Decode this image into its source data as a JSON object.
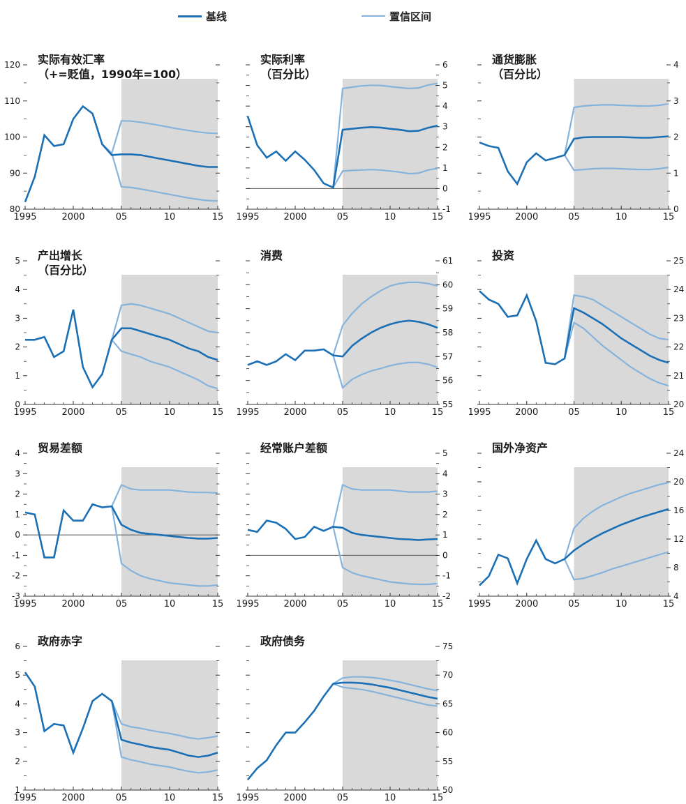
{
  "legend": {
    "baseline": "基线",
    "confidence": "置信区间",
    "baseline_color": "#1a6fb5",
    "confidence_color": "#85b3dc"
  },
  "colors": {
    "shade": "#d9d9d9",
    "axis": "#333333",
    "text": "#1a1a1a"
  },
  "chart_data": [
    {
      "type": "line",
      "title_lines": [
        "实际有效汇率",
        "（+=贬值，1990年=100）"
      ],
      "axis_side": "left",
      "ylim": [
        80,
        120
      ],
      "yticks": [
        80,
        90,
        100,
        110,
        120
      ],
      "zero_line": false,
      "x_ticks": [
        1995,
        2000,
        2005,
        2010,
        2015
      ],
      "x_tick_labels": [
        "1995",
        "2000",
        "05",
        "10",
        "15"
      ],
      "shade_from": 2005,
      "x": [
        1995,
        1996,
        1997,
        1998,
        1999,
        2000,
        2001,
        2002,
        2003,
        2004,
        2005,
        2006,
        2007,
        2008,
        2009,
        2010,
        2011,
        2012,
        2013,
        2014,
        2015
      ],
      "baseline": [
        82,
        89,
        100.5,
        97.5,
        98,
        105,
        108.5,
        106.5,
        98,
        95,
        95.2,
        95.2,
        95,
        94.5,
        94,
        93.5,
        93,
        92.5,
        92,
        91.7,
        91.7
      ],
      "upper": [
        null,
        null,
        null,
        null,
        null,
        null,
        null,
        null,
        98,
        95.5,
        104.5,
        104.4,
        104.1,
        103.7,
        103.2,
        102.7,
        102.2,
        101.8,
        101.4,
        101.1,
        101
      ],
      "lower": [
        null,
        null,
        null,
        null,
        null,
        null,
        null,
        null,
        98,
        95.5,
        86.2,
        86,
        85.6,
        85.1,
        84.6,
        84.1,
        83.6,
        83.1,
        82.7,
        82.4,
        82.3
      ]
    },
    {
      "type": "line",
      "title_lines": [
        "实际利率",
        "（百分比）"
      ],
      "axis_side": "right",
      "ylim": [
        -1,
        6
      ],
      "yticks": [
        -1,
        0,
        1,
        2,
        3,
        4,
        5,
        6
      ],
      "zero_line": true,
      "x_ticks": [
        1995,
        2000,
        2005,
        2010,
        2015
      ],
      "x_tick_labels": [
        "1995",
        "2000",
        "05",
        "10",
        "15"
      ],
      "shade_from": 2005,
      "x": [
        1995,
        1996,
        1997,
        1998,
        1999,
        2000,
        2001,
        2002,
        2003,
        2004,
        2005,
        2006,
        2007,
        2008,
        2009,
        2010,
        2011,
        2012,
        2013,
        2014,
        2015
      ],
      "baseline": [
        3.5,
        2.1,
        1.5,
        1.8,
        1.35,
        1.8,
        1.4,
        0.9,
        0.25,
        0.05,
        2.85,
        2.9,
        2.95,
        2.98,
        2.96,
        2.9,
        2.85,
        2.78,
        2.8,
        2.95,
        3.05
      ],
      "upper": [
        null,
        null,
        null,
        null,
        null,
        null,
        null,
        null,
        null,
        0.05,
        4.85,
        4.92,
        4.98,
        5.01,
        5,
        4.95,
        4.9,
        4.85,
        4.88,
        5.02,
        5.1
      ],
      "lower": [
        null,
        null,
        null,
        null,
        null,
        null,
        null,
        null,
        null,
        0.05,
        0.85,
        0.88,
        0.9,
        0.92,
        0.9,
        0.85,
        0.8,
        0.72,
        0.75,
        0.9,
        0.98
      ]
    },
    {
      "type": "line",
      "title_lines": [
        "通货膨胀",
        "（百分比）"
      ],
      "axis_side": "right",
      "ylim": [
        0,
        4
      ],
      "yticks": [
        0,
        1,
        2,
        3,
        4
      ],
      "zero_line": false,
      "x_ticks": [
        1995,
        2000,
        2005,
        2010,
        2015
      ],
      "x_tick_labels": [
        "1995",
        "2000",
        "05",
        "10",
        "15"
      ],
      "shade_from": 2005,
      "x": [
        1995,
        1996,
        1997,
        1998,
        1999,
        2000,
        2001,
        2002,
        2003,
        2004,
        2005,
        2006,
        2007,
        2008,
        2009,
        2010,
        2011,
        2012,
        2013,
        2014,
        2015
      ],
      "baseline": [
        1.85,
        1.75,
        1.7,
        1.05,
        0.7,
        1.3,
        1.55,
        1.35,
        1.42,
        1.5,
        1.95,
        1.99,
        2,
        2,
        2,
        2,
        1.99,
        1.98,
        1.98,
        2,
        2.02
      ],
      "upper": [
        null,
        null,
        null,
        null,
        null,
        null,
        null,
        null,
        null,
        1.5,
        2.82,
        2.86,
        2.88,
        2.89,
        2.89,
        2.88,
        2.87,
        2.86,
        2.86,
        2.88,
        2.92
      ],
      "lower": [
        null,
        null,
        null,
        null,
        null,
        null,
        null,
        null,
        null,
        1.5,
        1.08,
        1.1,
        1.12,
        1.13,
        1.13,
        1.12,
        1.11,
        1.1,
        1.1,
        1.12,
        1.16
      ]
    },
    {
      "type": "line",
      "title_lines": [
        "产出增长",
        "（百分比）"
      ],
      "axis_side": "left",
      "ylim": [
        0,
        5
      ],
      "yticks": [
        0,
        1,
        2,
        3,
        4,
        5
      ],
      "zero_line": false,
      "x_ticks": [
        1995,
        2000,
        2005,
        2010,
        2015
      ],
      "x_tick_labels": [
        "1995",
        "2000",
        "05",
        "10",
        "15"
      ],
      "shade_from": 2005,
      "x": [
        1995,
        1996,
        1997,
        1998,
        1999,
        2000,
        2001,
        2002,
        2003,
        2004,
        2005,
        2006,
        2007,
        2008,
        2009,
        2010,
        2011,
        2012,
        2013,
        2014,
        2015
      ],
      "baseline": [
        2.25,
        2.25,
        2.35,
        1.65,
        1.85,
        3.3,
        1.3,
        0.6,
        1.05,
        2.25,
        2.65,
        2.65,
        2.55,
        2.45,
        2.35,
        2.25,
        2.1,
        1.95,
        1.85,
        1.65,
        1.55
      ],
      "upper": [
        null,
        null,
        null,
        null,
        null,
        null,
        null,
        null,
        null,
        2.25,
        3.45,
        3.5,
        3.45,
        3.35,
        3.25,
        3.15,
        3,
        2.85,
        2.7,
        2.55,
        2.5
      ],
      "lower": [
        null,
        null,
        null,
        null,
        null,
        null,
        null,
        null,
        null,
        2.25,
        1.85,
        1.75,
        1.65,
        1.5,
        1.4,
        1.3,
        1.15,
        1,
        0.85,
        0.65,
        0.55
      ]
    },
    {
      "type": "line",
      "title_lines": [
        "消费"
      ],
      "axis_side": "right",
      "ylim": [
        55,
        61
      ],
      "yticks": [
        55,
        56,
        57,
        58,
        59,
        60,
        61
      ],
      "zero_line": false,
      "x_ticks": [
        1995,
        2000,
        2005,
        2010,
        2015
      ],
      "x_tick_labels": [
        "1995",
        "2000",
        "05",
        "10",
        "15"
      ],
      "shade_from": 2005,
      "x": [
        1995,
        1996,
        1997,
        1998,
        1999,
        2000,
        2001,
        2002,
        2003,
        2004,
        2005,
        2006,
        2007,
        2008,
        2009,
        2010,
        2011,
        2012,
        2013,
        2014,
        2015
      ],
      "baseline": [
        56.65,
        56.8,
        56.65,
        56.8,
        57.1,
        56.85,
        57.25,
        57.25,
        57.3,
        57.05,
        57,
        57.45,
        57.75,
        58,
        58.2,
        58.35,
        58.45,
        58.5,
        58.45,
        58.35,
        58.2
      ],
      "upper": [
        null,
        null,
        null,
        null,
        null,
        null,
        null,
        null,
        null,
        57.05,
        58.3,
        58.8,
        59.2,
        59.5,
        59.75,
        59.95,
        60.05,
        60.1,
        60.1,
        60.05,
        59.95
      ],
      "lower": [
        null,
        null,
        null,
        null,
        null,
        null,
        null,
        null,
        null,
        57.05,
        55.7,
        56.05,
        56.25,
        56.4,
        56.5,
        56.62,
        56.7,
        56.75,
        56.75,
        56.68,
        56.55
      ]
    },
    {
      "type": "line",
      "title_lines": [
        "投资"
      ],
      "axis_side": "right",
      "ylim": [
        20,
        25
      ],
      "yticks": [
        20,
        21,
        22,
        23,
        24,
        25
      ],
      "zero_line": false,
      "x_ticks": [
        1995,
        2000,
        2005,
        2010,
        2015
      ],
      "x_tick_labels": [
        "1995",
        "2000",
        "05",
        "10",
        "15"
      ],
      "shade_from": 2005,
      "x": [
        1995,
        1996,
        1997,
        1998,
        1999,
        2000,
        2001,
        2002,
        2003,
        2004,
        2005,
        2006,
        2007,
        2008,
        2009,
        2010,
        2011,
        2012,
        2013,
        2014,
        2015
      ],
      "baseline": [
        23.95,
        23.65,
        23.5,
        23.05,
        23.1,
        23.8,
        22.9,
        21.45,
        21.4,
        21.6,
        23.35,
        23.2,
        23,
        22.8,
        22.55,
        22.3,
        22.1,
        21.9,
        21.7,
        21.55,
        21.45
      ],
      "upper": [
        null,
        null,
        null,
        null,
        null,
        null,
        null,
        null,
        null,
        21.6,
        23.8,
        23.75,
        23.65,
        23.45,
        23.25,
        23.05,
        22.85,
        22.65,
        22.45,
        22.3,
        22.25
      ],
      "lower": [
        null,
        null,
        null,
        null,
        null,
        null,
        null,
        null,
        null,
        21.6,
        22.85,
        22.65,
        22.35,
        22.05,
        21.8,
        21.55,
        21.3,
        21.1,
        20.9,
        20.75,
        20.65
      ]
    },
    {
      "type": "line",
      "title_lines": [
        "贸易差额"
      ],
      "axis_side": "left",
      "ylim": [
        -3,
        4
      ],
      "yticks": [
        -3,
        -2,
        -1,
        0,
        1,
        2,
        3,
        4
      ],
      "zero_line": true,
      "x_ticks": [
        1995,
        2000,
        2005,
        2010,
        2015
      ],
      "x_tick_labels": [
        "1995",
        "2000",
        "05",
        "10",
        "15"
      ],
      "shade_from": 2005,
      "x": [
        1995,
        1996,
        1997,
        1998,
        1999,
        2000,
        2001,
        2002,
        2003,
        2004,
        2005,
        2006,
        2007,
        2008,
        2009,
        2010,
        2011,
        2012,
        2013,
        2014,
        2015
      ],
      "baseline": [
        1.1,
        1,
        -1.1,
        -1.1,
        1.2,
        0.7,
        0.7,
        1.5,
        1.35,
        1.4,
        0.5,
        0.25,
        0.1,
        0.05,
        0,
        -0.05,
        -0.1,
        -0.15,
        -0.18,
        -0.18,
        -0.15
      ],
      "upper": [
        null,
        null,
        null,
        null,
        null,
        null,
        null,
        null,
        null,
        1.4,
        2.45,
        2.25,
        2.2,
        2.2,
        2.2,
        2.2,
        2.15,
        2.1,
        2.08,
        2.08,
        2.05
      ],
      "lower": [
        null,
        null,
        null,
        null,
        null,
        null,
        null,
        null,
        null,
        1.4,
        -1.4,
        -1.75,
        -2,
        -2.15,
        -2.25,
        -2.35,
        -2.4,
        -2.45,
        -2.5,
        -2.5,
        -2.45
      ]
    },
    {
      "type": "line",
      "title_lines": [
        "经常账户差额"
      ],
      "axis_side": "right",
      "ylim": [
        -2,
        5
      ],
      "yticks": [
        -2,
        -1,
        0,
        1,
        2,
        3,
        4,
        5
      ],
      "zero_line": true,
      "x_ticks": [
        1995,
        2000,
        2005,
        2010,
        2015
      ],
      "x_tick_labels": [
        "1995",
        "2000",
        "05",
        "10",
        "15"
      ],
      "shade_from": 2005,
      "x": [
        1995,
        1996,
        1997,
        1998,
        1999,
        2000,
        2001,
        2002,
        2003,
        2004,
        2005,
        2006,
        2007,
        2008,
        2009,
        2010,
        2011,
        2012,
        2013,
        2014,
        2015
      ],
      "baseline": [
        1.25,
        1.15,
        1.7,
        1.6,
        1.3,
        0.8,
        0.9,
        1.4,
        1.2,
        1.4,
        1.35,
        1.1,
        1,
        0.95,
        0.9,
        0.85,
        0.8,
        0.78,
        0.75,
        0.78,
        0.8
      ],
      "upper": [
        null,
        null,
        null,
        null,
        null,
        null,
        null,
        null,
        null,
        1.4,
        3.45,
        3.25,
        3.2,
        3.2,
        3.2,
        3.2,
        3.15,
        3.1,
        3.1,
        3.1,
        3.15
      ],
      "lower": [
        null,
        null,
        null,
        null,
        null,
        null,
        null,
        null,
        null,
        1.4,
        -0.6,
        -0.85,
        -1,
        -1.1,
        -1.2,
        -1.3,
        -1.35,
        -1.4,
        -1.42,
        -1.42,
        -1.38
      ]
    },
    {
      "type": "line",
      "title_lines": [
        "国外净资产"
      ],
      "axis_side": "right",
      "ylim": [
        4,
        24
      ],
      "yticks": [
        4,
        8,
        12,
        16,
        20,
        24
      ],
      "zero_line": false,
      "x_ticks": [
        1995,
        2000,
        2005,
        2010,
        2015
      ],
      "x_tick_labels": [
        "1995",
        "2000",
        "05",
        "10",
        "15"
      ],
      "shade_from": 2005,
      "x": [
        1995,
        1996,
        1997,
        1998,
        1999,
        2000,
        2001,
        2002,
        2003,
        2004,
        2005,
        2006,
        2007,
        2008,
        2009,
        2010,
        2011,
        2012,
        2013,
        2014,
        2015
      ],
      "baseline": [
        5.5,
        6.8,
        9.8,
        9.3,
        5.8,
        9.2,
        11.8,
        9.2,
        8.6,
        9.2,
        10.4,
        11.3,
        12.1,
        12.8,
        13.4,
        14,
        14.5,
        15,
        15.4,
        15.8,
        16.2
      ],
      "upper": [
        null,
        null,
        null,
        null,
        null,
        null,
        null,
        null,
        null,
        9.2,
        13.5,
        14.9,
        15.9,
        16.7,
        17.3,
        17.9,
        18.4,
        18.8,
        19.2,
        19.6,
        19.9
      ],
      "lower": [
        null,
        null,
        null,
        null,
        null,
        null,
        null,
        null,
        null,
        9.2,
        6.3,
        6.5,
        6.9,
        7.3,
        7.8,
        8.2,
        8.6,
        9,
        9.4,
        9.8,
        10.2
      ]
    },
    {
      "type": "line",
      "title_lines": [
        "政府赤字"
      ],
      "axis_side": "left",
      "ylim": [
        1,
        6
      ],
      "yticks": [
        1,
        2,
        3,
        4,
        5,
        6
      ],
      "zero_line": false,
      "x_ticks": [
        1995,
        2000,
        2005,
        2010,
        2015
      ],
      "x_tick_labels": [
        "1995",
        "2000",
        "05",
        "10",
        "15"
      ],
      "shade_from": 2005,
      "x": [
        1995,
        1996,
        1997,
        1998,
        1999,
        2000,
        2001,
        2002,
        2003,
        2004,
        2005,
        2006,
        2007,
        2008,
        2009,
        2010,
        2011,
        2012,
        2013,
        2014,
        2015
      ],
      "baseline": [
        5.1,
        4.6,
        3.05,
        3.3,
        3.25,
        2.3,
        3.15,
        4.1,
        4.35,
        4.1,
        2.75,
        2.65,
        2.58,
        2.5,
        2.45,
        2.4,
        2.3,
        2.2,
        2.15,
        2.2,
        2.3
      ],
      "upper": [
        null,
        null,
        null,
        null,
        null,
        null,
        null,
        null,
        null,
        4.1,
        3.3,
        3.2,
        3.15,
        3.08,
        3.02,
        2.97,
        2.9,
        2.82,
        2.78,
        2.82,
        2.88
      ],
      "lower": [
        null,
        null,
        null,
        null,
        null,
        null,
        null,
        null,
        null,
        4.1,
        2.15,
        2.05,
        1.98,
        1.9,
        1.85,
        1.8,
        1.72,
        1.65,
        1.6,
        1.63,
        1.7
      ]
    },
    {
      "type": "line",
      "title_lines": [
        "政府债务"
      ],
      "axis_side": "right",
      "ylim": [
        50,
        75
      ],
      "yticks": [
        50,
        55,
        60,
        65,
        70,
        75
      ],
      "zero_line": false,
      "x_ticks": [
        1995,
        2000,
        2005,
        2010,
        2015
      ],
      "x_tick_labels": [
        "1995",
        "2000",
        "05",
        "10",
        "15"
      ],
      "shade_from": 2005,
      "x": [
        1995,
        1996,
        1997,
        1998,
        1999,
        2000,
        2001,
        2002,
        2003,
        2004,
        2005,
        2006,
        2007,
        2008,
        2009,
        2010,
        2011,
        2012,
        2013,
        2014,
        2015
      ],
      "baseline": [
        51.8,
        53.8,
        55.2,
        57.8,
        60,
        60,
        61.8,
        63.8,
        66.3,
        68.5,
        68.7,
        68.7,
        68.6,
        68.4,
        68.1,
        67.8,
        67.4,
        67,
        66.6,
        66.2,
        65.9
      ],
      "upper": [
        null,
        null,
        null,
        null,
        null,
        null,
        null,
        null,
        null,
        68.5,
        69.5,
        69.7,
        69.7,
        69.6,
        69.4,
        69.1,
        68.8,
        68.4,
        68,
        67.6,
        67.3
      ],
      "lower": [
        null,
        null,
        null,
        null,
        null,
        null,
        null,
        null,
        null,
        68.5,
        67.9,
        67.7,
        67.5,
        67.2,
        66.8,
        66.4,
        66,
        65.6,
        65.2,
        64.8,
        64.6
      ]
    }
  ]
}
